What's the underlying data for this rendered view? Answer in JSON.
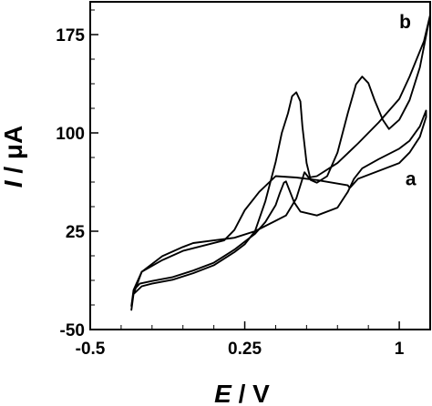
{
  "chart_data": {
    "type": "line",
    "xlabel": {
      "italic": "E",
      "rest": " / V"
    },
    "ylabel": {
      "italic": "I",
      "rest": " / μA"
    },
    "xlim": [
      -0.5,
      1.15
    ],
    "ylim": [
      -50,
      200
    ],
    "xticks": [
      {
        "value": -0.5,
        "label": "-0.5"
      },
      {
        "value": 0.25,
        "label": "0.25"
      },
      {
        "value": 1.0,
        "label": "1"
      }
    ],
    "yticks": [
      {
        "value": -50,
        "label": "-50"
      },
      {
        "value": 25,
        "label": "25"
      },
      {
        "value": 100,
        "label": "100"
      },
      {
        "value": 175,
        "label": "175"
      }
    ],
    "grid": false,
    "series": [
      {
        "name": "a",
        "label_anchor": [
          1.03,
          60
        ],
        "points": [
          [
            -0.3,
            -32
          ],
          [
            -0.29,
            -20
          ],
          [
            -0.26,
            -15
          ],
          [
            -0.2,
            -13
          ],
          [
            -0.1,
            -10
          ],
          [
            0.0,
            -5
          ],
          [
            0.1,
            1
          ],
          [
            0.2,
            11
          ],
          [
            0.25,
            17
          ],
          [
            0.3,
            23
          ],
          [
            0.35,
            32
          ],
          [
            0.4,
            45
          ],
          [
            0.42,
            54
          ],
          [
            0.44,
            62
          ],
          [
            0.45,
            63
          ],
          [
            0.47,
            55
          ],
          [
            0.49,
            47
          ],
          [
            0.52,
            40
          ],
          [
            0.6,
            37
          ],
          [
            0.7,
            43
          ],
          [
            0.75,
            55
          ],
          [
            0.78,
            65
          ],
          [
            0.82,
            73
          ],
          [
            0.9,
            80
          ],
          [
            1.0,
            88
          ],
          [
            1.05,
            94
          ],
          [
            1.1,
            105
          ],
          [
            1.13,
            117
          ],
          [
            1.13,
            112
          ],
          [
            1.1,
            97
          ],
          [
            1.05,
            85
          ],
          [
            1.0,
            77
          ],
          [
            0.9,
            71
          ],
          [
            0.8,
            65
          ],
          [
            0.76,
            58
          ],
          [
            0.75,
            60
          ],
          [
            0.6,
            64
          ],
          [
            0.5,
            66
          ],
          [
            0.4,
            67
          ],
          [
            0.32,
            55
          ],
          [
            0.25,
            41
          ],
          [
            0.2,
            26
          ],
          [
            0.15,
            18
          ],
          [
            0.05,
            14
          ],
          [
            -0.05,
            10
          ],
          [
            -0.15,
            3
          ],
          [
            -0.25,
            -6
          ],
          [
            -0.29,
            -20
          ],
          [
            -0.3,
            -32
          ]
        ]
      },
      {
        "name": "b",
        "label_anchor": [
          1.0,
          180
        ],
        "points": [
          [
            -0.3,
            -35
          ],
          [
            -0.29,
            -23
          ],
          [
            -0.25,
            -17
          ],
          [
            -0.2,
            -15
          ],
          [
            -0.1,
            -12
          ],
          [
            0.0,
            -7
          ],
          [
            0.1,
            -1
          ],
          [
            0.2,
            9
          ],
          [
            0.25,
            15
          ],
          [
            0.3,
            25
          ],
          [
            0.35,
            48
          ],
          [
            0.4,
            78
          ],
          [
            0.43,
            100
          ],
          [
            0.46,
            115
          ],
          [
            0.48,
            128
          ],
          [
            0.5,
            131
          ],
          [
            0.52,
            124
          ],
          [
            0.53,
            105
          ],
          [
            0.55,
            77
          ],
          [
            0.57,
            64
          ],
          [
            0.6,
            62
          ],
          [
            0.65,
            67
          ],
          [
            0.7,
            85
          ],
          [
            0.75,
            115
          ],
          [
            0.79,
            137
          ],
          [
            0.82,
            143
          ],
          [
            0.85,
            138
          ],
          [
            0.88,
            125
          ],
          [
            0.92,
            110
          ],
          [
            0.95,
            103
          ],
          [
            1.0,
            110
          ],
          [
            1.05,
            125
          ],
          [
            1.1,
            150
          ],
          [
            1.15,
            190
          ],
          [
            1.12,
            170
          ],
          [
            1.05,
            143
          ],
          [
            1.0,
            126
          ],
          [
            0.9,
            108
          ],
          [
            0.8,
            92
          ],
          [
            0.7,
            77
          ],
          [
            0.6,
            67
          ],
          [
            0.56,
            66
          ],
          [
            0.54,
            70
          ],
          [
            0.52,
            60
          ],
          [
            0.5,
            50
          ],
          [
            0.45,
            37
          ],
          [
            0.4,
            33
          ],
          [
            0.3,
            25
          ],
          [
            0.2,
            20
          ],
          [
            0.1,
            18
          ],
          [
            0.0,
            16
          ],
          [
            -0.05,
            13
          ],
          [
            -0.15,
            6
          ],
          [
            -0.25,
            -6
          ],
          [
            -0.29,
            -23
          ],
          [
            -0.3,
            -35
          ]
        ]
      }
    ]
  }
}
